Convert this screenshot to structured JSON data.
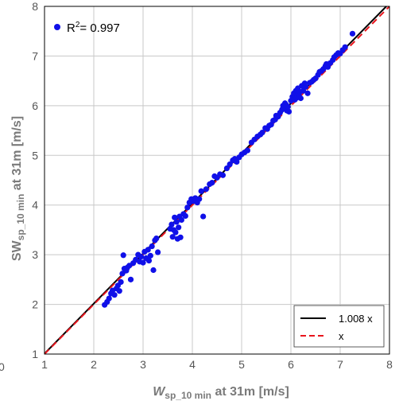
{
  "chart_data": {
    "type": "scatter",
    "xlim": [
      1,
      8
    ],
    "ylim": [
      1,
      8
    ],
    "xticks": [
      "1",
      "2",
      "3",
      "4",
      "5",
      "6",
      "7",
      "8"
    ],
    "yticks": [
      "1",
      "2",
      "3",
      "4",
      "5",
      "6",
      "7",
      "8"
    ],
    "stray_tick_label": "0",
    "xlabel": {
      "main": "W",
      "sub": "sp_10 min",
      "rest": " at 31m [m/s]"
    },
    "ylabel": {
      "main": "SW",
      "sub": "sp_10 min",
      "rest": " at 31m [m/s]"
    },
    "grid": true,
    "point_color": "#1010e8",
    "r2_legend": {
      "prefix": "R",
      "sup": "2",
      "value": "= 0.997",
      "placement": "top-left"
    },
    "fit_lines": [
      {
        "label": "1.008 x",
        "slope": 1.008,
        "color": "#000000",
        "style": "solid"
      },
      {
        "label": "x",
        "slope": 1.0,
        "color": "#e8141c",
        "style": "dashed"
      }
    ],
    "fit_legend_placement": "bottom-right",
    "points": [
      [
        2.22,
        1.99
      ],
      [
        2.27,
        2.05
      ],
      [
        2.31,
        2.12
      ],
      [
        2.35,
        2.22
      ],
      [
        2.38,
        2.28
      ],
      [
        2.42,
        2.19
      ],
      [
        2.46,
        2.32
      ],
      [
        2.49,
        2.38
      ],
      [
        2.52,
        2.27
      ],
      [
        2.55,
        2.45
      ],
      [
        2.58,
        2.62
      ],
      [
        2.6,
        2.99
      ],
      [
        2.62,
        2.72
      ],
      [
        2.66,
        2.68
      ],
      [
        2.68,
        2.74
      ],
      [
        2.72,
        2.78
      ],
      [
        2.75,
        2.5
      ],
      [
        2.8,
        2.83
      ],
      [
        2.85,
        2.9
      ],
      [
        2.9,
        3.0
      ],
      [
        2.93,
        2.86
      ],
      [
        2.96,
        2.96
      ],
      [
        3.0,
        2.84
      ],
      [
        3.03,
        3.06
      ],
      [
        3.06,
        2.93
      ],
      [
        3.1,
        3.1
      ],
      [
        3.12,
        2.88
      ],
      [
        3.15,
        2.98
      ],
      [
        3.18,
        3.17
      ],
      [
        3.21,
        2.69
      ],
      [
        3.24,
        3.29
      ],
      [
        3.27,
        3.33
      ],
      [
        3.3,
        3.05
      ],
      [
        3.55,
        3.52
      ],
      [
        3.58,
        3.61
      ],
      [
        3.6,
        3.36
      ],
      [
        3.62,
        3.5
      ],
      [
        3.64,
        3.75
      ],
      [
        3.66,
        3.45
      ],
      [
        3.68,
        3.66
      ],
      [
        3.7,
        3.32
      ],
      [
        3.72,
        3.55
      ],
      [
        3.74,
        3.77
      ],
      [
        3.76,
        3.35
      ],
      [
        3.78,
        3.7
      ],
      [
        3.82,
        3.82
      ],
      [
        3.86,
        3.78
      ],
      [
        3.9,
        3.95
      ],
      [
        3.94,
        4.05
      ],
      [
        3.98,
        4.12
      ],
      [
        4.02,
        4.08
      ],
      [
        4.06,
        4.14
      ],
      [
        4.1,
        4.05
      ],
      [
        4.14,
        4.12
      ],
      [
        4.18,
        4.28
      ],
      [
        4.22,
        3.77
      ],
      [
        4.28,
        4.32
      ],
      [
        4.35,
        4.42
      ],
      [
        4.4,
        4.45
      ],
      [
        4.45,
        4.58
      ],
      [
        4.5,
        4.55
      ],
      [
        4.56,
        4.62
      ],
      [
        4.62,
        4.6
      ],
      [
        4.7,
        4.74
      ],
      [
        4.76,
        4.82
      ],
      [
        4.82,
        4.9
      ],
      [
        4.86,
        4.93
      ],
      [
        4.9,
        4.87
      ],
      [
        4.95,
        4.96
      ],
      [
        5.0,
        5.02
      ],
      [
        5.06,
        5.06
      ],
      [
        5.12,
        5.1
      ],
      [
        5.2,
        5.26
      ],
      [
        5.26,
        5.32
      ],
      [
        5.32,
        5.38
      ],
      [
        5.38,
        5.42
      ],
      [
        5.42,
        5.46
      ],
      [
        5.48,
        5.55
      ],
      [
        5.52,
        5.53
      ],
      [
        5.56,
        5.6
      ],
      [
        5.6,
        5.62
      ],
      [
        5.64,
        5.7
      ],
      [
        5.68,
        5.72
      ],
      [
        5.7,
        5.8
      ],
      [
        5.74,
        5.78
      ],
      [
        5.78,
        5.86
      ],
      [
        5.82,
        5.92
      ],
      [
        5.84,
        6.0
      ],
      [
        5.86,
        5.95
      ],
      [
        5.88,
        6.05
      ],
      [
        5.9,
        6.02
      ],
      [
        5.92,
        5.9
      ],
      [
        5.94,
        5.98
      ],
      [
        5.96,
        5.88
      ],
      [
        6.0,
        6.1
      ],
      [
        6.03,
        6.18
      ],
      [
        6.06,
        6.25
      ],
      [
        6.08,
        6.12
      ],
      [
        6.1,
        6.3
      ],
      [
        6.12,
        6.16
      ],
      [
        6.14,
        6.35
      ],
      [
        6.16,
        6.22
      ],
      [
        6.18,
        6.28
      ],
      [
        6.2,
        6.15
      ],
      [
        6.22,
        6.4
      ],
      [
        6.25,
        6.3
      ],
      [
        6.28,
        6.45
      ],
      [
        6.3,
        6.38
      ],
      [
        6.34,
        6.25
      ],
      [
        6.38,
        6.46
      ],
      [
        6.42,
        6.48
      ],
      [
        6.46,
        6.52
      ],
      [
        6.5,
        6.55
      ],
      [
        6.55,
        6.62
      ],
      [
        6.58,
        6.68
      ],
      [
        6.62,
        6.7
      ],
      [
        6.66,
        6.74
      ],
      [
        6.7,
        6.8
      ],
      [
        6.72,
        6.84
      ],
      [
        6.75,
        6.78
      ],
      [
        6.8,
        6.86
      ],
      [
        6.85,
        6.92
      ],
      [
        6.88,
        6.98
      ],
      [
        6.92,
        7.02
      ],
      [
        6.96,
        7.06
      ],
      [
        7.0,
        7.05
      ],
      [
        7.05,
        7.12
      ],
      [
        7.1,
        7.18
      ],
      [
        7.25,
        7.45
      ]
    ]
  }
}
